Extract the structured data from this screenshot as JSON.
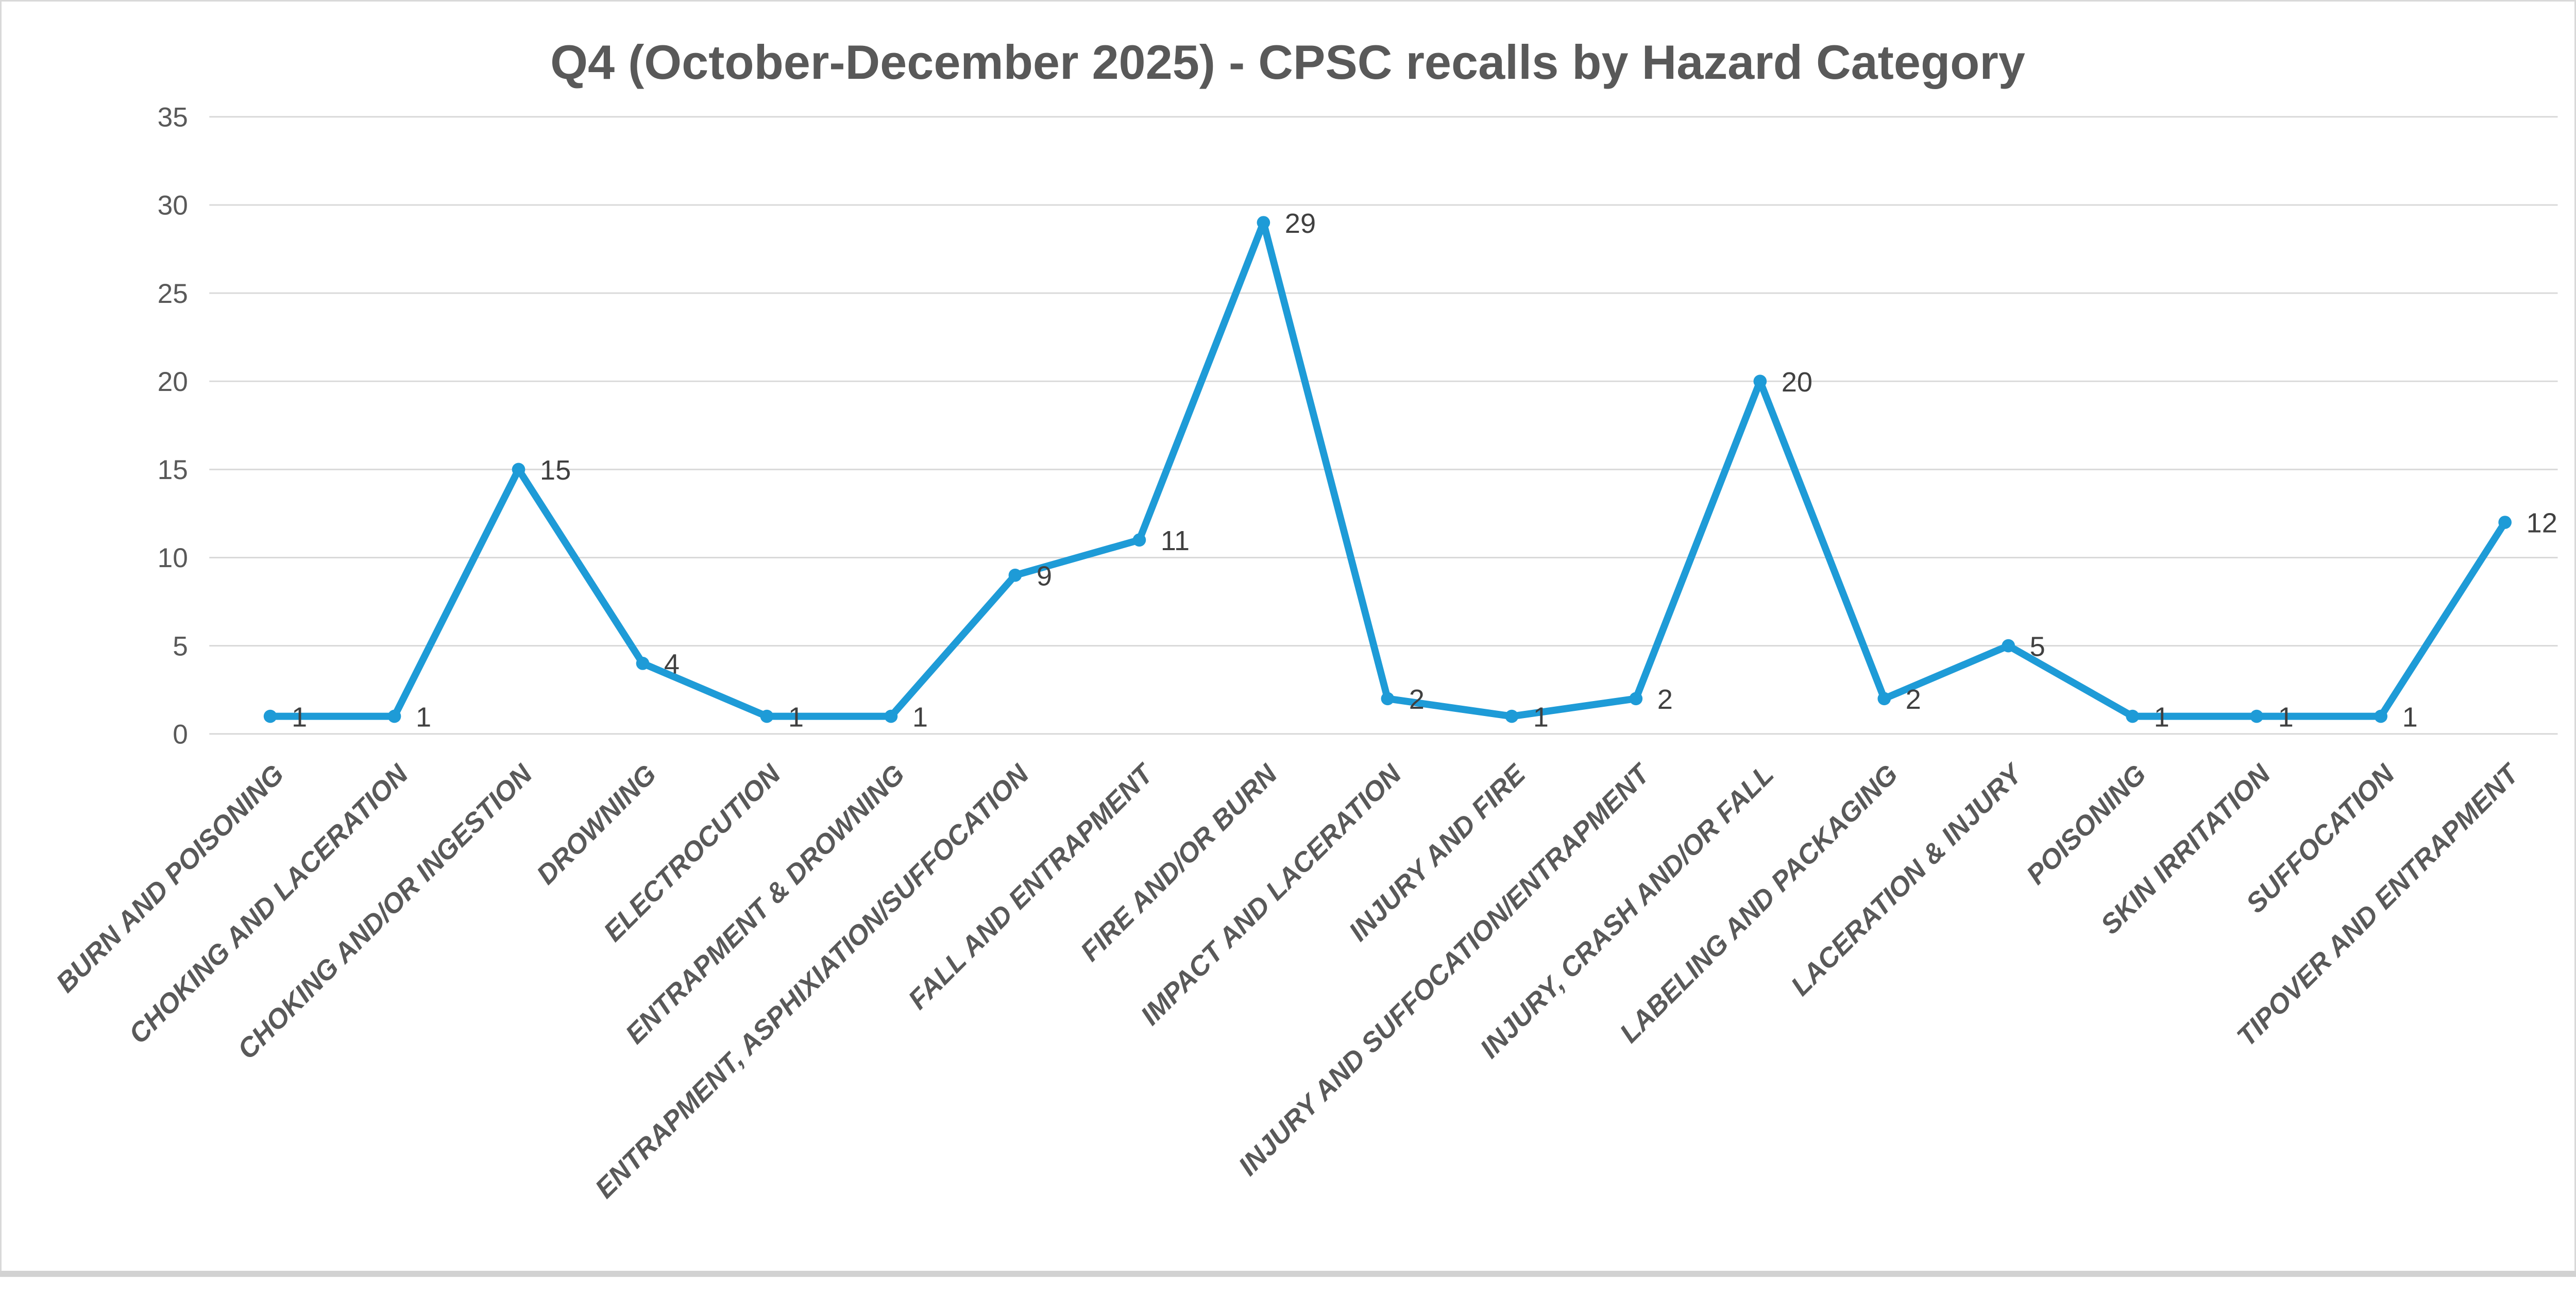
{
  "chart_data": {
    "type": "line",
    "title": "Q4 (October-December 2025) - CPSC recalls by Hazard Category",
    "categories": [
      "BURN AND POISONING",
      "CHOKING AND LACERATION",
      "CHOKING AND/OR INGESTION",
      "DROWNING",
      "ELECTROCUTION",
      "ENTRAPMENT & DROWNING",
      "ENTRAPMENT, ASPHIXIATION/SUFFOCATION",
      "FALL AND ENTRAPMENT",
      "FIRE AND/OR BURN",
      "IMPACT AND LACERATION",
      "INJURY AND FIRE",
      "INJURY AND SUFFOCATION/ENTRAPMENT",
      "INJURY, CRASH AND/OR FALL",
      "LABELING AND PACKAGING",
      "LACERATION & INJURY",
      "POISONING",
      "SKIN IRRITATION",
      "SUFFOCATION",
      "TIPOVER AND ENTRAPMENT"
    ],
    "values": [
      1,
      1,
      15,
      4,
      1,
      1,
      9,
      11,
      29,
      2,
      1,
      2,
      20,
      2,
      5,
      1,
      1,
      1,
      12
    ],
    "data_labels_shown": true,
    "xlabel": "",
    "ylabel": "",
    "ylim": [
      0,
      35
    ],
    "yticks": [
      0,
      5,
      10,
      15,
      20,
      25,
      30,
      35
    ],
    "grid": "horizontal",
    "legend": "none",
    "colors": {
      "line": "#1E9BD7",
      "marker": "#1E9BD7",
      "gridline": "#D9D9D9",
      "axis_tick_label": "#595959",
      "category_label": "#595959",
      "data_label": "#404040",
      "title": "#595959",
      "frame_border": "#D9D9D9",
      "bottom_strip": "#D2D2D2",
      "background": "#FFFFFF"
    }
  }
}
